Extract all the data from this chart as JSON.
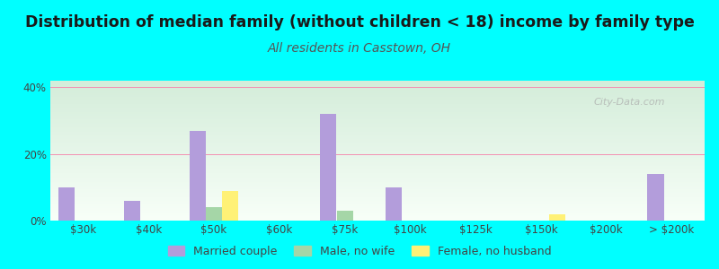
{
  "title": "Distribution of median family (without children < 18) income by family type",
  "subtitle": "All residents in Casstown, OH",
  "bg_color": "#00FFFF",
  "plot_bg_top": "#d4edda",
  "plot_bg_bottom": "#f8fff8",
  "categories": [
    "$30k",
    "$40k",
    "$50k",
    "$60k",
    "$75k",
    "$100k",
    "$125k",
    "$150k",
    "$200k",
    "> $200k"
  ],
  "married_couple": [
    10,
    6,
    27,
    0,
    32,
    10,
    0,
    0,
    0,
    14
  ],
  "male_no_wife": [
    0,
    0,
    4,
    0,
    3,
    0,
    0,
    0,
    0,
    0
  ],
  "female_no_husband": [
    0,
    0,
    9,
    0,
    0,
    0,
    0,
    2,
    0,
    0
  ],
  "married_color": "#b39ddb",
  "male_color": "#a5d6a7",
  "female_color": "#fff176",
  "ylim": [
    0,
    42
  ],
  "ytick_vals": [
    0,
    20,
    40
  ],
  "ytick_labels": [
    "0%",
    "20%",
    "40%"
  ],
  "grid_color": "#f48fb1",
  "watermark": "City-Data.com",
  "bar_width": 0.25,
  "title_fontsize": 12.5,
  "subtitle_fontsize": 10,
  "legend_fontsize": 9,
  "tick_fontsize": 8.5,
  "subtitle_color": "#555555"
}
